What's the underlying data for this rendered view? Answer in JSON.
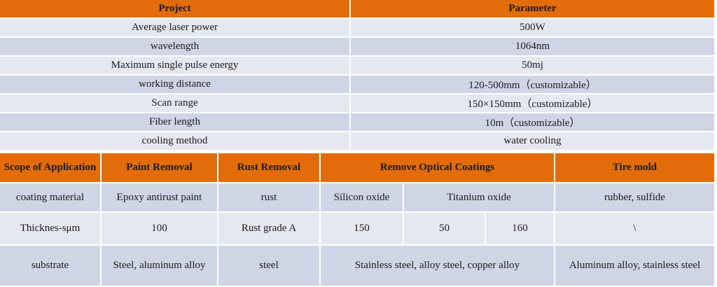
{
  "spec_table": {
    "header": {
      "project": "Project",
      "parameter": "Parameter"
    },
    "rows": [
      {
        "label": "Average laser power",
        "value": "500W"
      },
      {
        "label": "wavelength",
        "value": "1064nm"
      },
      {
        "label": "Maximum single pulse energy",
        "value": "50mj"
      },
      {
        "label": "working distance",
        "value": "120-500mm（customizable）"
      },
      {
        "label": "Scan range",
        "value": "150×150mm（customizable）"
      },
      {
        "label": "Fiber length",
        "value": "10m（customizable）"
      },
      {
        "label": "cooling method",
        "value": "water cooling"
      }
    ]
  },
  "application_table": {
    "header": {
      "scope": "Scope of Application",
      "paint": "Paint Removal",
      "rust": "Rust Removal",
      "optical": "Remove Optical Coatings",
      "tire": "Tire mold"
    },
    "coating": {
      "label": "coating material",
      "paint": "Epoxy antirust paint",
      "rust": "rust",
      "optical_1": "Silicon oxide",
      "optical_2": "Titanium oxide",
      "tire": "rubber, sulfide"
    },
    "thickness": {
      "label": "Thicknes-sμm",
      "paint": "100",
      "rust": "Rust grade A",
      "optical_1": "150",
      "optical_2": "50",
      "optical_3": "160",
      "tire": "\\"
    },
    "substrate": {
      "label": "substrate",
      "paint": "Steel, aluminum alloy",
      "rust": "steel",
      "optical": "Stainless steel, alloy steel, copper alloy",
      "tire": "Aluminum alloy, stainless steel"
    }
  }
}
